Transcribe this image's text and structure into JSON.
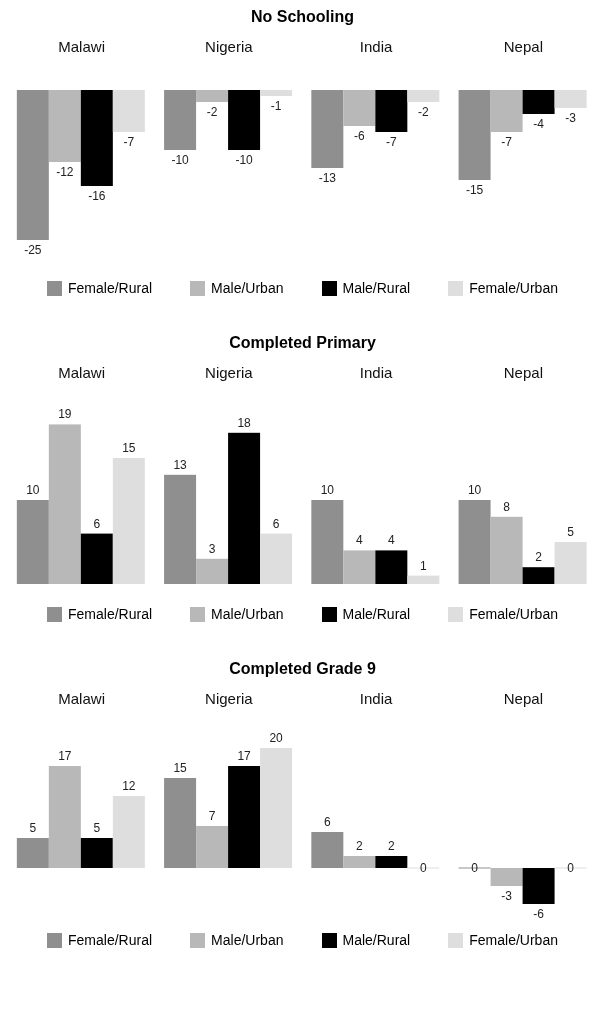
{
  "chart_data": [
    {
      "type": "bar",
      "title": "No Schooling",
      "categories": [
        "Malawi",
        "Nigeria",
        "India",
        "Nepal"
      ],
      "series": [
        {
          "name": "Female/Rural",
          "color": "#8f8f8f",
          "values": [
            -25,
            -10,
            -13,
            -15
          ]
        },
        {
          "name": "Male/Urban",
          "color": "#b8b8b8",
          "values": [
            -12,
            -2,
            -6,
            -7
          ]
        },
        {
          "name": "Male/Rural",
          "color": "#000000",
          "values": [
            -16,
            -10,
            -7,
            -4
          ]
        },
        {
          "name": "Female/Urban",
          "color": "#dedede",
          "values": [
            -7,
            -1,
            -2,
            -3
          ]
        }
      ],
      "data_labels": true,
      "legend": "bottom",
      "grid": false
    },
    {
      "type": "bar",
      "title": "Completed Primary",
      "categories": [
        "Malawi",
        "Nigeria",
        "India",
        "Nepal"
      ],
      "series": [
        {
          "name": "Female/Rural",
          "color": "#8f8f8f",
          "values": [
            10,
            13,
            10,
            10
          ]
        },
        {
          "name": "Male/Urban",
          "color": "#b8b8b8",
          "values": [
            19,
            3,
            4,
            8
          ]
        },
        {
          "name": "Male/Rural",
          "color": "#000000",
          "values": [
            6,
            18,
            4,
            2
          ]
        },
        {
          "name": "Female/Urban",
          "color": "#dedede",
          "values": [
            15,
            6,
            1,
            5
          ]
        }
      ],
      "data_labels": true,
      "legend": "bottom",
      "grid": false
    },
    {
      "type": "bar",
      "title": "Completed Grade 9",
      "categories": [
        "Malawi",
        "Nigeria",
        "India",
        "Nepal"
      ],
      "series": [
        {
          "name": "Female/Rural",
          "color": "#8f8f8f",
          "values": [
            5,
            15,
            6,
            0
          ]
        },
        {
          "name": "Male/Urban",
          "color": "#b8b8b8",
          "values": [
            17,
            7,
            2,
            -3
          ]
        },
        {
          "name": "Male/Rural",
          "color": "#000000",
          "values": [
            5,
            17,
            2,
            -6
          ]
        },
        {
          "name": "Female/Urban",
          "color": "#dedede",
          "values": [
            12,
            20,
            0,
            0
          ]
        }
      ],
      "data_labels": true,
      "legend": "bottom",
      "grid": false
    }
  ]
}
